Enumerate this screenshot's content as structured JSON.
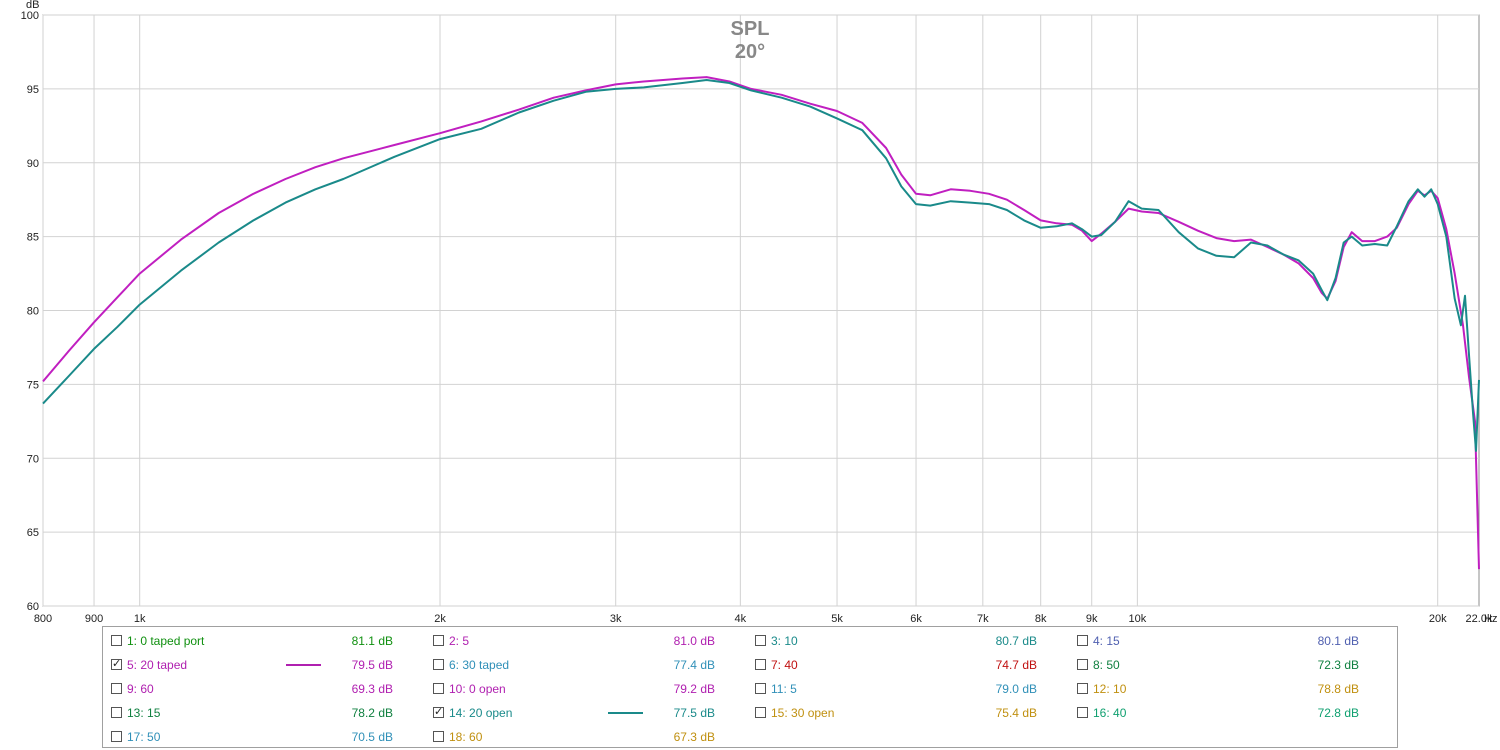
{
  "chart_data": {
    "type": "line",
    "title": "SPL",
    "subtitle": "20°",
    "ylabel": "dB",
    "xlabel": "Hz",
    "x_scale": "log",
    "xlim": [
      800,
      22000
    ],
    "ylim": [
      60,
      100
    ],
    "x_ticks": [
      {
        "v": 800,
        "label": "800"
      },
      {
        "v": 900,
        "label": "900"
      },
      {
        "v": 1000,
        "label": "1k"
      },
      {
        "v": 2000,
        "label": "2k"
      },
      {
        "v": 3000,
        "label": "3k"
      },
      {
        "v": 4000,
        "label": "4k"
      },
      {
        "v": 5000,
        "label": "5k"
      },
      {
        "v": 6000,
        "label": "6k"
      },
      {
        "v": 7000,
        "label": "7k"
      },
      {
        "v": 8000,
        "label": "8k"
      },
      {
        "v": 9000,
        "label": "9k"
      },
      {
        "v": 10000,
        "label": "10k"
      },
      {
        "v": 20000,
        "label": "20k"
      },
      {
        "v": 22000,
        "label": "22.0k"
      }
    ],
    "x_grid": [
      800,
      900,
      1000,
      2000,
      3000,
      4000,
      5000,
      6000,
      7000,
      8000,
      9000,
      10000,
      20000
    ],
    "y_ticks": [
      {
        "v": 60,
        "label": "60"
      },
      {
        "v": 65,
        "label": "65"
      },
      {
        "v": 70,
        "label": "70"
      },
      {
        "v": 75,
        "label": "75"
      },
      {
        "v": 80,
        "label": "80"
      },
      {
        "v": 85,
        "label": "85"
      },
      {
        "v": 90,
        "label": "90"
      },
      {
        "v": 95,
        "label": "95"
      },
      {
        "v": 100,
        "label": "100"
      }
    ],
    "grid": true,
    "series": [
      {
        "name": "5: 20 taped",
        "color": "#c01fc0",
        "points": [
          [
            800,
            75.2
          ],
          [
            850,
            77.3
          ],
          [
            900,
            79.2
          ],
          [
            950,
            80.9
          ],
          [
            1000,
            82.5
          ],
          [
            1100,
            84.8
          ],
          [
            1200,
            86.6
          ],
          [
            1300,
            87.9
          ],
          [
            1400,
            88.9
          ],
          [
            1500,
            89.7
          ],
          [
            1600,
            90.3
          ],
          [
            1800,
            91.2
          ],
          [
            2000,
            92.0
          ],
          [
            2200,
            92.8
          ],
          [
            2400,
            93.6
          ],
          [
            2600,
            94.4
          ],
          [
            2800,
            94.9
          ],
          [
            3000,
            95.3
          ],
          [
            3200,
            95.5
          ],
          [
            3500,
            95.7
          ],
          [
            3700,
            95.8
          ],
          [
            3900,
            95.5
          ],
          [
            4100,
            95.0
          ],
          [
            4400,
            94.6
          ],
          [
            4700,
            94.0
          ],
          [
            5000,
            93.5
          ],
          [
            5300,
            92.7
          ],
          [
            5600,
            91.0
          ],
          [
            5800,
            89.2
          ],
          [
            6000,
            87.9
          ],
          [
            6200,
            87.8
          ],
          [
            6500,
            88.2
          ],
          [
            6800,
            88.1
          ],
          [
            7100,
            87.9
          ],
          [
            7400,
            87.5
          ],
          [
            7700,
            86.8
          ],
          [
            8000,
            86.1
          ],
          [
            8300,
            85.9
          ],
          [
            8600,
            85.8
          ],
          [
            8800,
            85.4
          ],
          [
            9000,
            84.7
          ],
          [
            9200,
            85.2
          ],
          [
            9500,
            86.0
          ],
          [
            9800,
            86.9
          ],
          [
            10100,
            86.7
          ],
          [
            10500,
            86.6
          ],
          [
            11000,
            86.0
          ],
          [
            11500,
            85.4
          ],
          [
            12000,
            84.9
          ],
          [
            12500,
            84.7
          ],
          [
            13000,
            84.8
          ],
          [
            13500,
            84.3
          ],
          [
            14000,
            83.8
          ],
          [
            14500,
            83.2
          ],
          [
            15000,
            82.2
          ],
          [
            15300,
            81.2
          ],
          [
            15500,
            80.8
          ],
          [
            15800,
            82.0
          ],
          [
            16100,
            84.3
          ],
          [
            16400,
            85.3
          ],
          [
            16800,
            84.7
          ],
          [
            17300,
            84.7
          ],
          [
            17800,
            85.0
          ],
          [
            18200,
            85.6
          ],
          [
            18700,
            87.2
          ],
          [
            19100,
            88.1
          ],
          [
            19400,
            87.8
          ],
          [
            19700,
            88.1
          ],
          [
            20000,
            87.6
          ],
          [
            20400,
            85.5
          ],
          [
            20800,
            82.5
          ],
          [
            21200,
            79.0
          ],
          [
            21500,
            75.5
          ],
          [
            21800,
            72.5
          ],
          [
            22000,
            62.5
          ]
        ]
      },
      {
        "name": "14: 20 open",
        "color": "#1a8a8a",
        "points": [
          [
            800,
            73.7
          ],
          [
            850,
            75.6
          ],
          [
            900,
            77.4
          ],
          [
            950,
            78.9
          ],
          [
            1000,
            80.4
          ],
          [
            1100,
            82.7
          ],
          [
            1200,
            84.6
          ],
          [
            1300,
            86.1
          ],
          [
            1400,
            87.3
          ],
          [
            1500,
            88.2
          ],
          [
            1600,
            88.9
          ],
          [
            1800,
            90.4
          ],
          [
            2000,
            91.6
          ],
          [
            2200,
            92.3
          ],
          [
            2400,
            93.4
          ],
          [
            2600,
            94.2
          ],
          [
            2800,
            94.8
          ],
          [
            3000,
            95.0
          ],
          [
            3200,
            95.1
          ],
          [
            3500,
            95.4
          ],
          [
            3700,
            95.6
          ],
          [
            3900,
            95.4
          ],
          [
            4100,
            94.9
          ],
          [
            4400,
            94.4
          ],
          [
            4700,
            93.8
          ],
          [
            5000,
            93.0
          ],
          [
            5300,
            92.2
          ],
          [
            5600,
            90.3
          ],
          [
            5800,
            88.4
          ],
          [
            6000,
            87.2
          ],
          [
            6200,
            87.1
          ],
          [
            6500,
            87.4
          ],
          [
            6800,
            87.3
          ],
          [
            7100,
            87.2
          ],
          [
            7400,
            86.8
          ],
          [
            7700,
            86.1
          ],
          [
            8000,
            85.6
          ],
          [
            8300,
            85.7
          ],
          [
            8600,
            85.9
          ],
          [
            8800,
            85.5
          ],
          [
            9000,
            85.0
          ],
          [
            9200,
            85.1
          ],
          [
            9500,
            86.0
          ],
          [
            9800,
            87.4
          ],
          [
            10100,
            86.9
          ],
          [
            10500,
            86.8
          ],
          [
            11000,
            85.3
          ],
          [
            11500,
            84.2
          ],
          [
            12000,
            83.7
          ],
          [
            12500,
            83.6
          ],
          [
            13000,
            84.6
          ],
          [
            13500,
            84.4
          ],
          [
            14000,
            83.8
          ],
          [
            14500,
            83.4
          ],
          [
            15000,
            82.5
          ],
          [
            15300,
            81.4
          ],
          [
            15500,
            80.7
          ],
          [
            15800,
            82.2
          ],
          [
            16100,
            84.6
          ],
          [
            16400,
            85.0
          ],
          [
            16800,
            84.4
          ],
          [
            17300,
            84.5
          ],
          [
            17800,
            84.4
          ],
          [
            18200,
            85.7
          ],
          [
            18700,
            87.4
          ],
          [
            19100,
            88.2
          ],
          [
            19400,
            87.7
          ],
          [
            19700,
            88.2
          ],
          [
            20000,
            87.2
          ],
          [
            20400,
            85.0
          ],
          [
            20800,
            80.8
          ],
          [
            21100,
            79.0
          ],
          [
            21300,
            81.0
          ],
          [
            21500,
            77.0
          ],
          [
            21700,
            73.0
          ],
          [
            21850,
            70.5
          ],
          [
            22000,
            75.3
          ]
        ]
      }
    ]
  },
  "legend": {
    "rows": [
      [
        {
          "checked": false,
          "label": "1: 0 taped port",
          "value": "81.1 dB",
          "color": "#109010",
          "swatch": false
        },
        {
          "checked": false,
          "label": "2: 5",
          "value": "81.0 dB",
          "color": "#b020b0",
          "swatch": false
        },
        {
          "checked": false,
          "label": "3: 10",
          "value": "80.7 dB",
          "color": "#1a8a8a",
          "swatch": false
        },
        {
          "checked": false,
          "label": "4: 15",
          "value": "80.1 dB",
          "color": "#5060b0",
          "swatch": false
        }
      ],
      [
        {
          "checked": true,
          "label": "5: 20 taped",
          "value": "79.5 dB",
          "color": "#b020b0",
          "swatch": true
        },
        {
          "checked": false,
          "label": "6: 30 taped",
          "value": "77.4 dB",
          "color": "#3090b8",
          "swatch": false
        },
        {
          "checked": false,
          "label": "7: 40",
          "value": "74.7 dB",
          "color": "#c01010",
          "swatch": false
        },
        {
          "checked": false,
          "label": "8: 50",
          "value": "72.3 dB",
          "color": "#108040",
          "swatch": false
        }
      ],
      [
        {
          "checked": false,
          "label": "9: 60",
          "value": "69.3 dB",
          "color": "#b020b0",
          "swatch": false
        },
        {
          "checked": false,
          "label": "10: 0 open",
          "value": "79.2 dB",
          "color": "#b020b0",
          "swatch": false
        },
        {
          "checked": false,
          "label": "11: 5",
          "value": "79.0 dB",
          "color": "#3090b8",
          "swatch": false
        },
        {
          "checked": false,
          "label": "12: 10",
          "value": "78.8 dB",
          "color": "#c09010",
          "swatch": false
        }
      ],
      [
        {
          "checked": false,
          "label": "13: 15",
          "value": "78.2 dB",
          "color": "#108040",
          "swatch": false
        },
        {
          "checked": true,
          "label": "14: 20 open",
          "value": "77.5 dB",
          "color": "#1a8a8a",
          "swatch": true
        },
        {
          "checked": false,
          "label": "15: 30 open",
          "value": "75.4 dB",
          "color": "#c09010",
          "swatch": false
        },
        {
          "checked": false,
          "label": "16: 40",
          "value": "72.8 dB",
          "color": "#10a070",
          "swatch": false
        }
      ],
      [
        {
          "checked": false,
          "label": "17: 50",
          "value": "70.5 dB",
          "color": "#3090b8",
          "swatch": false
        },
        {
          "checked": false,
          "label": "18: 60",
          "value": "67.3 dB",
          "color": "#c09010",
          "swatch": false
        }
      ]
    ]
  }
}
